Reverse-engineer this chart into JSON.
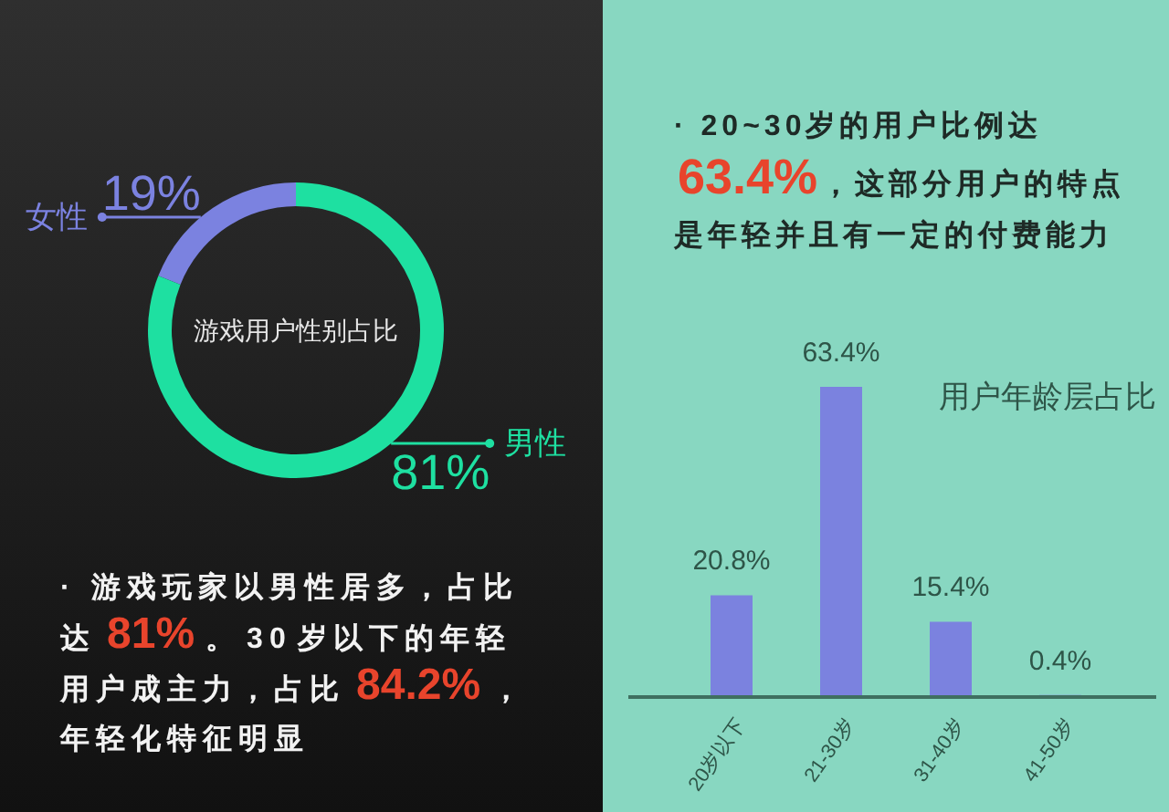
{
  "chart_data": [
    {
      "type": "donut",
      "title": "游戏用户性别占比",
      "categories": [
        "女性",
        "男性"
      ],
      "values": [
        19,
        81
      ],
      "colors": [
        "#7b82e0",
        "#1ee0a1"
      ],
      "value_labels": [
        "19%",
        "81%"
      ],
      "annotations": [
        "· 游戏玩家以男性居多，占比达81%。30岁以下的年轻用户成主力，占比84.2%，年轻化特征明显"
      ]
    },
    {
      "type": "bar",
      "title": "用户年龄层占比",
      "categories": [
        "20岁以下",
        "21-30岁",
        "31-40岁",
        "41-50岁"
      ],
      "values": [
        20.8,
        63.4,
        15.4,
        0.4
      ],
      "color": "#7b82df",
      "value_labels": [
        "20.8%",
        "63.4%",
        "15.4%",
        "0.4%"
      ],
      "tick_labels": "x",
      "annotations": [
        "· 20~30岁的用户比例达63.4%，这部分用户的特点是年轻并且有一定的付费能力"
      ]
    }
  ]
}
